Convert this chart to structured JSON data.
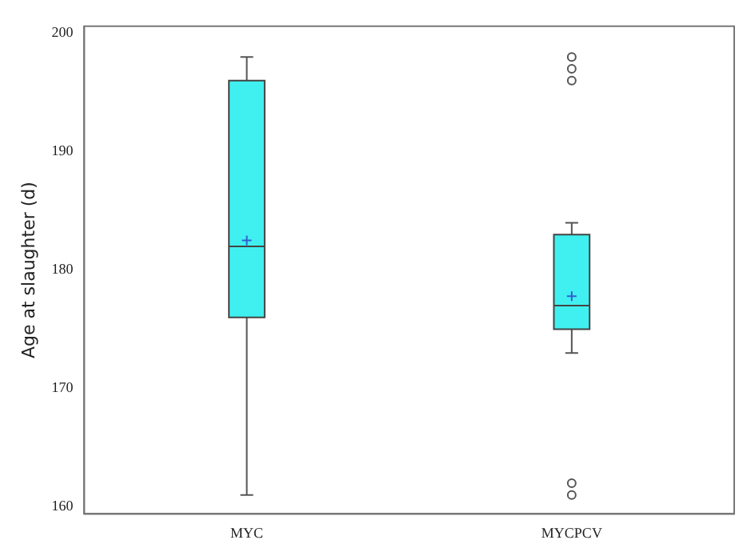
{
  "chart_data": {
    "type": "box",
    "categories": [
      "MYC",
      "MYCPCV"
    ],
    "ylabel": "Age at slaughter (d)",
    "ylim": [
      159.4,
      200.6
    ],
    "yticks": [
      160,
      170,
      180,
      190,
      200
    ],
    "grid": false,
    "color": "#40f0f0",
    "boxes": [
      {
        "low": 161,
        "q1": 176,
        "median": 182,
        "q3": 196,
        "high": 198,
        "mean": 182.5
      },
      {
        "low": 173,
        "q1": 175,
        "median": 177,
        "q3": 183,
        "high": 184,
        "mean": 177.8,
        "outliers": [
          196,
          197,
          198,
          161,
          162
        ]
      }
    ]
  }
}
